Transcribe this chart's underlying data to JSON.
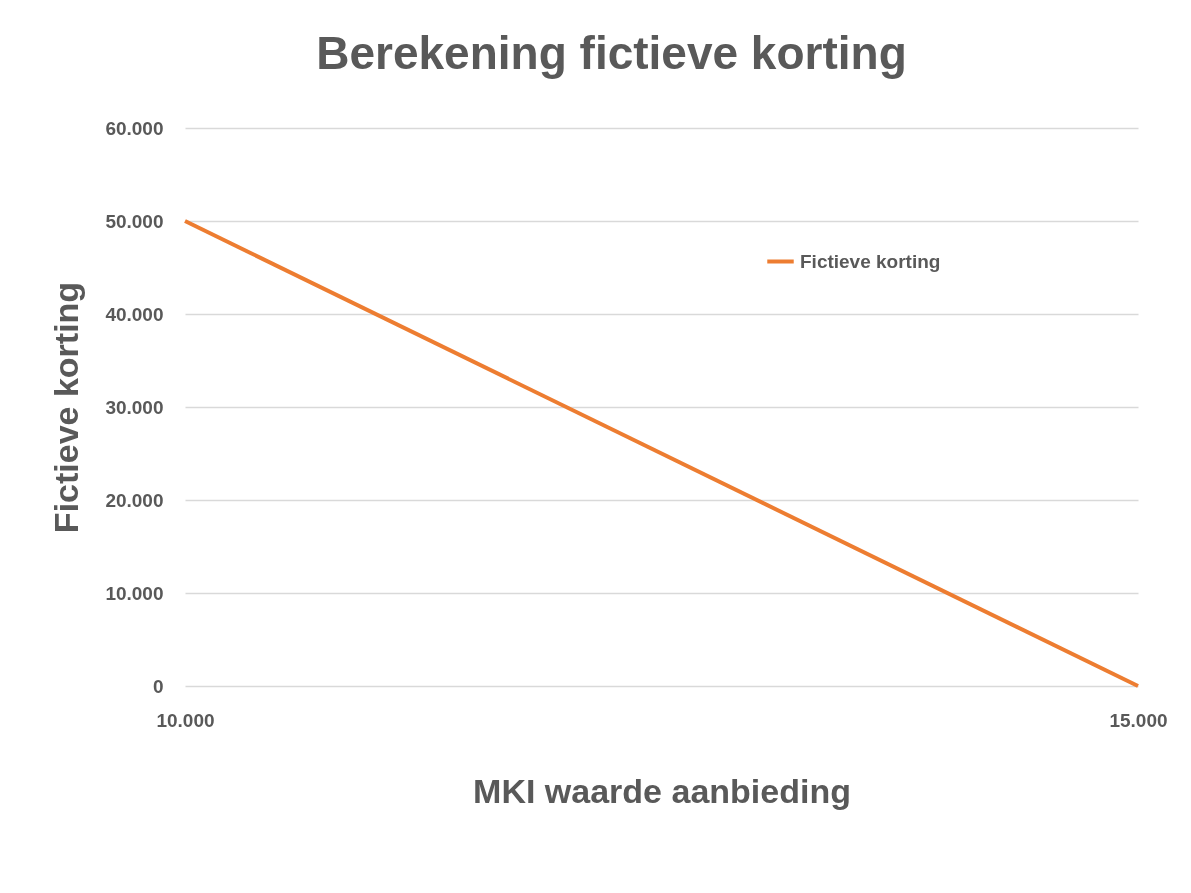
{
  "chart_data": {
    "type": "line",
    "title": "Berekening fictieve korting",
    "xlabel": "MKI waarde aanbieding",
    "ylabel": "Fictieve korting",
    "x": [
      10000,
      15000
    ],
    "series": [
      {
        "name": "Fictieve korting",
        "color": "#ed7d31",
        "values": [
          50000,
          0
        ]
      }
    ],
    "xlim": [
      10000,
      15000
    ],
    "xticks": [
      {
        "value": 10000,
        "label": "10.000"
      },
      {
        "value": 15000,
        "label": "15.000"
      }
    ],
    "ylim": [
      0,
      60000
    ],
    "yticks": [
      {
        "value": 0,
        "label": "0"
      },
      {
        "value": 10000,
        "label": "10.000"
      },
      {
        "value": 20000,
        "label": "20.000"
      },
      {
        "value": 30000,
        "label": "30.000"
      },
      {
        "value": 40000,
        "label": "40.000"
      },
      {
        "value": 50000,
        "label": "50.000"
      },
      {
        "value": 60000,
        "label": "60.000"
      }
    ],
    "grid": "y",
    "legend": "top right",
    "marker": "none",
    "line_style": "solid"
  }
}
